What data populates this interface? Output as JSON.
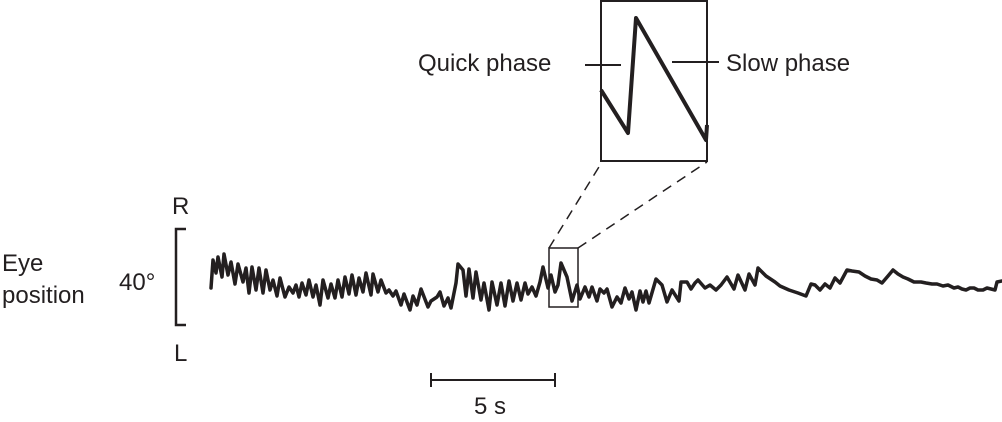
{
  "labels": {
    "eye_line1": "Eye",
    "eye_line2": "position",
    "angle": "40°",
    "right": "R",
    "left": "L",
    "quick_phase": "Quick phase",
    "slow_phase": "Slow phase",
    "time_scale": "5 s"
  },
  "colors": {
    "ink": "#231f20",
    "background": "#ffffff"
  }
}
